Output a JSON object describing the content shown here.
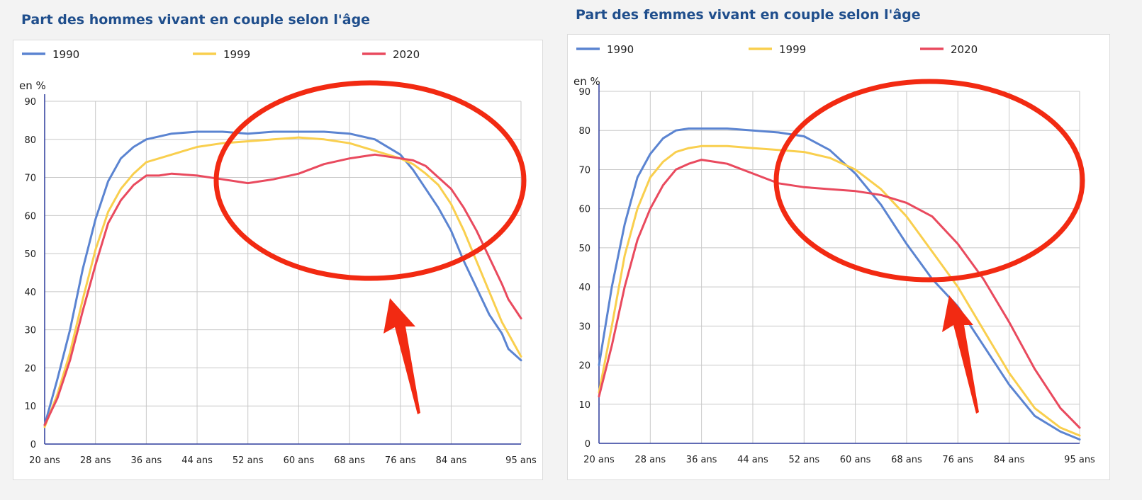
{
  "charts": [
    {
      "title": "Part des hommes vivant en couple selon l'âge",
      "unit_label": "en %",
      "legend": [
        {
          "label": "1990",
          "color": "#5b84d1"
        },
        {
          "label": "1999",
          "color": "#f9cf4e"
        },
        {
          "label": "2020",
          "color": "#e94a5e"
        }
      ],
      "x_ticks": [
        "20 ans",
        "28 ans",
        "36 ans",
        "44 ans",
        "52 ans",
        "60 ans",
        "68 ans",
        "76 ans",
        "84 ans",
        "95 ans"
      ],
      "y_ticks": [
        "0",
        "10",
        "20",
        "30",
        "40",
        "50",
        "60",
        "70",
        "80",
        "90"
      ]
    },
    {
      "title": "Part des femmes vivant en couple selon l'âge",
      "unit_label": "en %",
      "legend": [
        {
          "label": "1990",
          "color": "#5b84d1"
        },
        {
          "label": "1999",
          "color": "#f9cf4e"
        },
        {
          "label": "2020",
          "color": "#e94a5e"
        }
      ],
      "x_ticks": [
        "20 ans",
        "28 ans",
        "36 ans",
        "44 ans",
        "52 ans",
        "60 ans",
        "68 ans",
        "76 ans",
        "84 ans",
        "95 ans"
      ],
      "y_ticks": [
        "0",
        "10",
        "20",
        "30",
        "40",
        "50",
        "60",
        "70",
        "80",
        "90"
      ]
    }
  ],
  "chart_data": [
    {
      "type": "line",
      "title": "Part des hommes vivant en couple selon l'âge",
      "ylabel": "en %",
      "xlabel": "",
      "x_unit": "age",
      "xlim": [
        20,
        95
      ],
      "ylim": [
        0,
        90
      ],
      "grid": true,
      "legend_position": "top",
      "series": [
        {
          "name": "1990",
          "color": "#5b84d1",
          "x": [
            20,
            22,
            24,
            26,
            28,
            30,
            32,
            34,
            36,
            40,
            44,
            48,
            52,
            56,
            60,
            64,
            68,
            72,
            76,
            78,
            80,
            82,
            84,
            86,
            88,
            90,
            92,
            93,
            95
          ],
          "y": [
            5,
            17,
            30,
            46,
            59,
            69,
            75,
            78,
            80,
            81.5,
            82,
            82,
            81.5,
            82,
            82,
            82,
            81.5,
            80,
            76,
            72,
            67,
            62,
            56,
            48,
            41,
            34,
            29,
            25,
            22
          ]
        },
        {
          "name": "1999",
          "color": "#f9cf4e",
          "x": [
            20,
            22,
            24,
            26,
            28,
            30,
            32,
            34,
            36,
            40,
            44,
            48,
            52,
            56,
            60,
            64,
            68,
            72,
            76,
            78,
            80,
            82,
            84,
            86,
            88,
            90,
            92,
            93,
            95
          ],
          "y": [
            4.5,
            13,
            24,
            38,
            51,
            61,
            67,
            71,
            74,
            76,
            78,
            79,
            79.5,
            80,
            80.5,
            80,
            79,
            77,
            75,
            73.5,
            71,
            68,
            63,
            56,
            48,
            40,
            32,
            29,
            23
          ]
        },
        {
          "name": "2020",
          "color": "#e94a5e",
          "x": [
            20,
            22,
            24,
            26,
            28,
            30,
            32,
            34,
            36,
            38,
            40,
            44,
            48,
            52,
            56,
            60,
            64,
            68,
            72,
            76,
            78,
            80,
            82,
            84,
            86,
            88,
            90,
            92,
            93,
            95
          ],
          "y": [
            5,
            12,
            22,
            35,
            47,
            58,
            64,
            68,
            70.5,
            70.5,
            71,
            70.5,
            69.5,
            68.5,
            69.5,
            71,
            73.5,
            75,
            76,
            75,
            74.5,
            73,
            70,
            67,
            62,
            56,
            49,
            42,
            38,
            33
          ]
        }
      ]
    },
    {
      "type": "line",
      "title": "Part des femmes vivant en couple selon l'âge",
      "ylabel": "en %",
      "xlabel": "",
      "x_unit": "age",
      "xlim": [
        20,
        95
      ],
      "ylim": [
        0,
        90
      ],
      "grid": true,
      "legend_position": "top",
      "series": [
        {
          "name": "1990",
          "color": "#5b84d1",
          "x": [
            20,
            22,
            24,
            26,
            28,
            30,
            32,
            34,
            36,
            40,
            44,
            48,
            52,
            56,
            60,
            64,
            68,
            72,
            76,
            80,
            84,
            88,
            92,
            95
          ],
          "y": [
            20,
            40,
            56,
            68,
            74,
            78,
            80,
            80.5,
            80.5,
            80.5,
            80,
            79.5,
            78.5,
            75,
            69,
            61,
            51,
            42,
            35,
            25,
            15,
            7,
            3,
            1
          ]
        },
        {
          "name": "1999",
          "color": "#f9cf4e",
          "x": [
            20,
            22,
            24,
            26,
            28,
            30,
            32,
            34,
            36,
            40,
            44,
            48,
            52,
            56,
            60,
            64,
            68,
            72,
            76,
            80,
            84,
            88,
            92,
            95
          ],
          "y": [
            13,
            30,
            48,
            60,
            68,
            72,
            74.5,
            75.5,
            76,
            76,
            75.5,
            75,
            74.5,
            73,
            70,
            65,
            58,
            49,
            40,
            29,
            18,
            9,
            4,
            2
          ]
        },
        {
          "name": "2020",
          "color": "#e94a5e",
          "x": [
            20,
            22,
            24,
            26,
            28,
            30,
            32,
            34,
            36,
            38,
            40,
            44,
            48,
            52,
            56,
            60,
            64,
            68,
            72,
            76,
            80,
            84,
            88,
            92,
            95
          ],
          "y": [
            12,
            25,
            40,
            52,
            60,
            66,
            70,
            71.5,
            72.5,
            72,
            71.5,
            69,
            66.5,
            65.5,
            65,
            64.5,
            63.5,
            61.5,
            58,
            51,
            42,
            31,
            19,
            9,
            4
          ]
        }
      ]
    }
  ]
}
